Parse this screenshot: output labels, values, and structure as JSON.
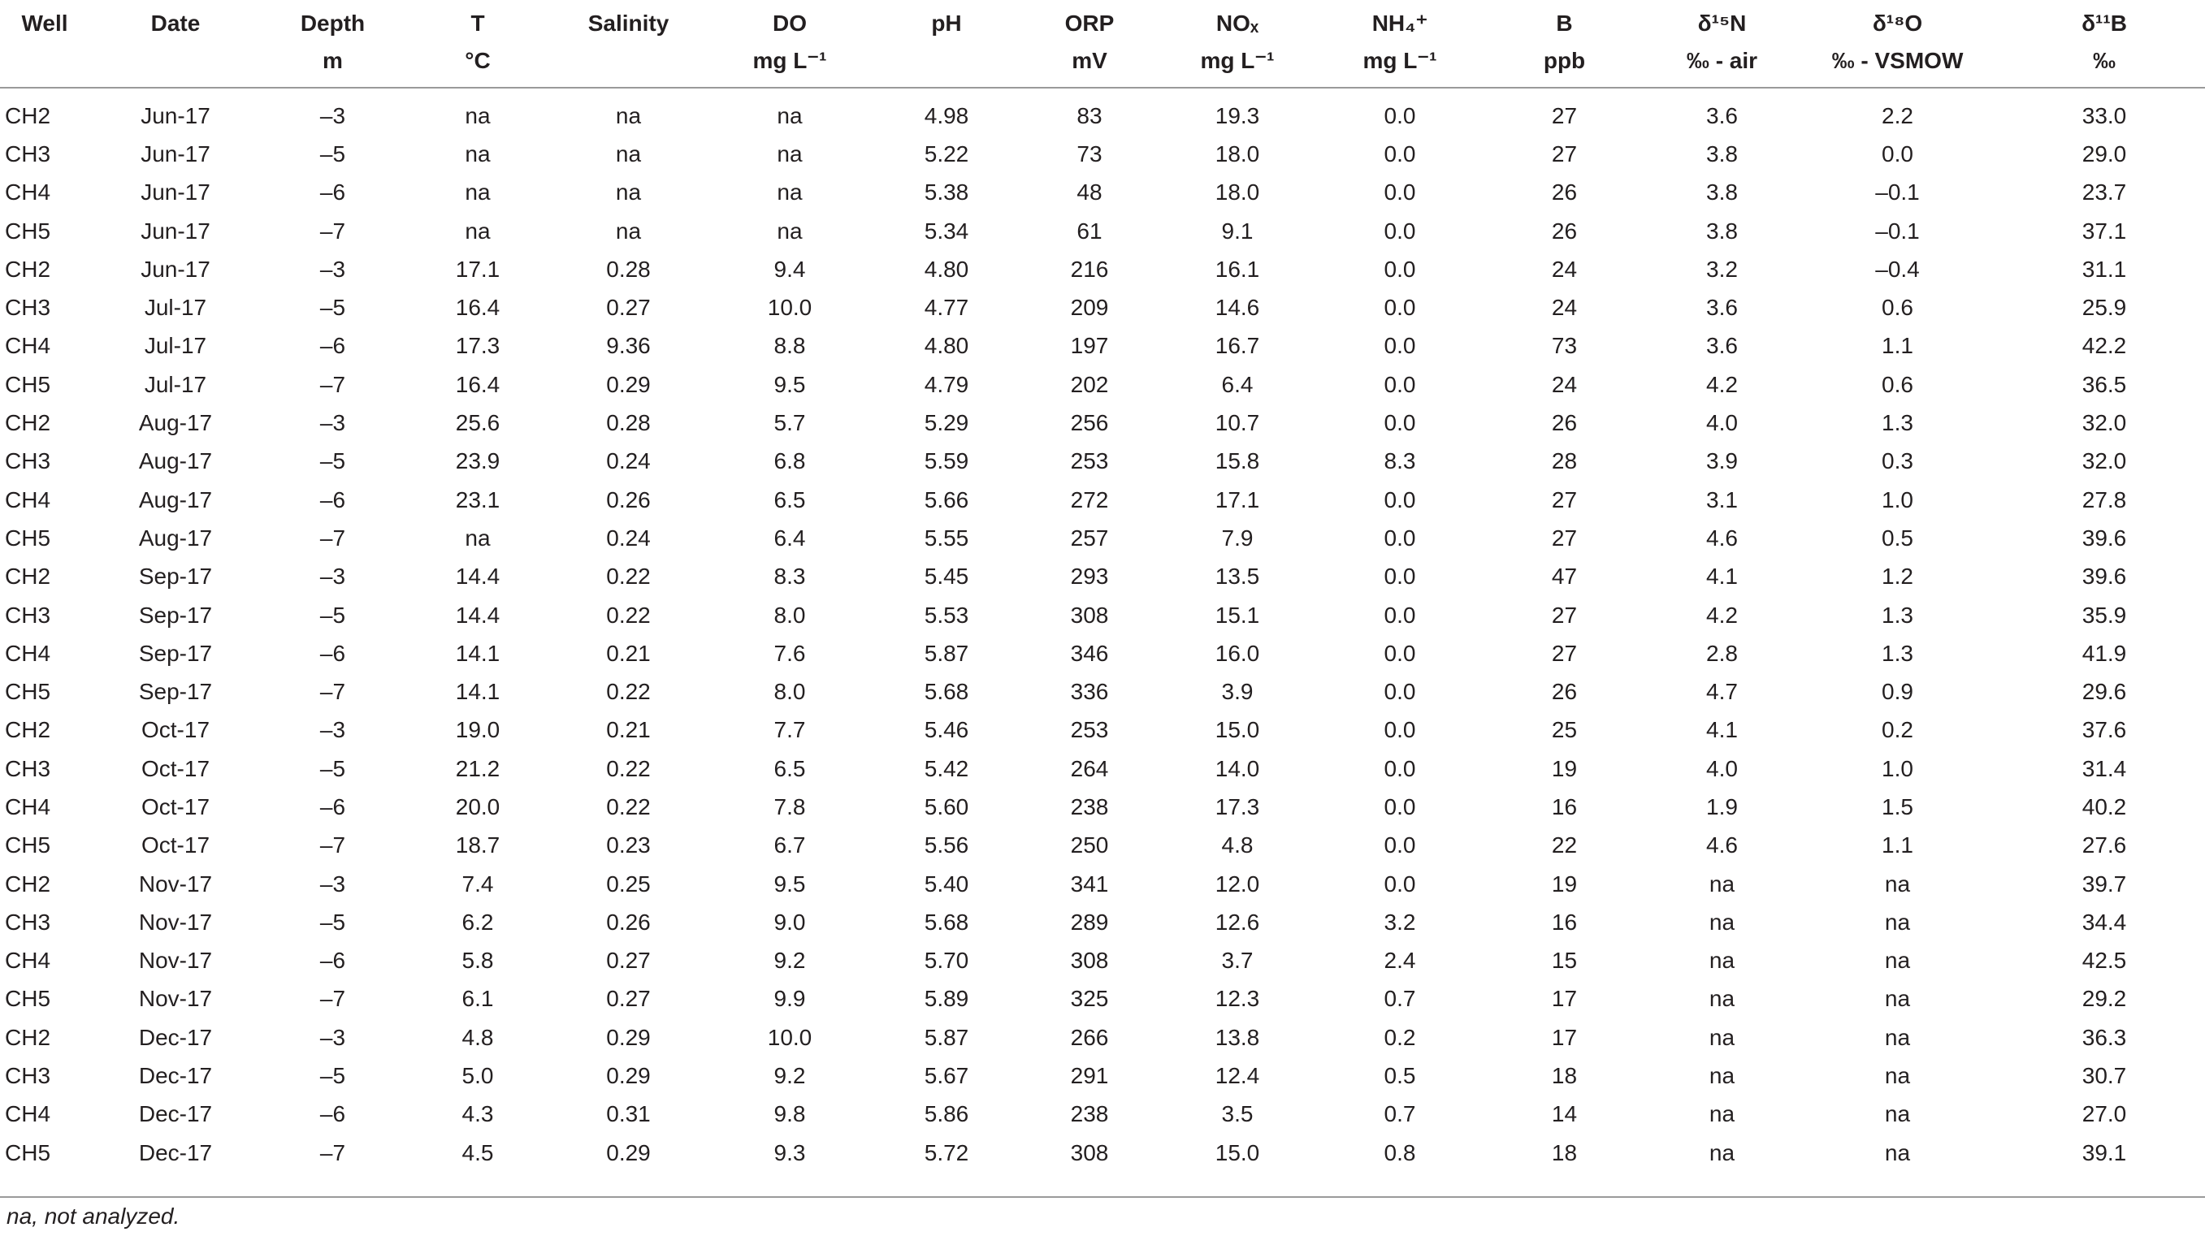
{
  "table": {
    "columns": [
      {
        "line1": "Well",
        "line2": ""
      },
      {
        "line1": "Date",
        "line2": ""
      },
      {
        "line1": "Depth",
        "line2": "m"
      },
      {
        "line1": "T",
        "line2": "°C"
      },
      {
        "line1": "Salinity",
        "line2": ""
      },
      {
        "line1": "DO",
        "line2": "mg L⁻¹"
      },
      {
        "line1": "pH",
        "line2": ""
      },
      {
        "line1": "ORP",
        "line2": "mV"
      },
      {
        "line1": "NOₓ",
        "line2": "mg L⁻¹"
      },
      {
        "line1": "NH₄⁺",
        "line2": "mg L⁻¹"
      },
      {
        "line1": "B",
        "line2": "ppb"
      },
      {
        "line1": "δ¹⁵N",
        "line2": "‰ - air"
      },
      {
        "line1": "δ¹⁸O",
        "line2": "‰ - VSMOW"
      },
      {
        "line1": "δ¹¹B",
        "line2": "‰"
      }
    ],
    "rows": [
      [
        "CH2",
        "Jun-17",
        "–3",
        "na",
        "na",
        "na",
        "4.98",
        "83",
        "19.3",
        "0.0",
        "27",
        "3.6",
        "2.2",
        "33.0"
      ],
      [
        "CH3",
        "Jun-17",
        "–5",
        "na",
        "na",
        "na",
        "5.22",
        "73",
        "18.0",
        "0.0",
        "27",
        "3.8",
        "0.0",
        "29.0"
      ],
      [
        "CH4",
        "Jun-17",
        "–6",
        "na",
        "na",
        "na",
        "5.38",
        "48",
        "18.0",
        "0.0",
        "26",
        "3.8",
        "–0.1",
        "23.7"
      ],
      [
        "CH5",
        "Jun-17",
        "–7",
        "na",
        "na",
        "na",
        "5.34",
        "61",
        "9.1",
        "0.0",
        "26",
        "3.8",
        "–0.1",
        "37.1"
      ],
      [
        "CH2",
        "Jun-17",
        "–3",
        "17.1",
        "0.28",
        "9.4",
        "4.80",
        "216",
        "16.1",
        "0.0",
        "24",
        "3.2",
        "–0.4",
        "31.1"
      ],
      [
        "CH3",
        "Jul-17",
        "–5",
        "16.4",
        "0.27",
        "10.0",
        "4.77",
        "209",
        "14.6",
        "0.0",
        "24",
        "3.6",
        "0.6",
        "25.9"
      ],
      [
        "CH4",
        "Jul-17",
        "–6",
        "17.3",
        "9.36",
        "8.8",
        "4.80",
        "197",
        "16.7",
        "0.0",
        "73",
        "3.6",
        "1.1",
        "42.2"
      ],
      [
        "CH5",
        "Jul-17",
        "–7",
        "16.4",
        "0.29",
        "9.5",
        "4.79",
        "202",
        "6.4",
        "0.0",
        "24",
        "4.2",
        "0.6",
        "36.5"
      ],
      [
        "CH2",
        "Aug-17",
        "–3",
        "25.6",
        "0.28",
        "5.7",
        "5.29",
        "256",
        "10.7",
        "0.0",
        "26",
        "4.0",
        "1.3",
        "32.0"
      ],
      [
        "CH3",
        "Aug-17",
        "–5",
        "23.9",
        "0.24",
        "6.8",
        "5.59",
        "253",
        "15.8",
        "8.3",
        "28",
        "3.9",
        "0.3",
        "32.0"
      ],
      [
        "CH4",
        "Aug-17",
        "–6",
        "23.1",
        "0.26",
        "6.5",
        "5.66",
        "272",
        "17.1",
        "0.0",
        "27",
        "3.1",
        "1.0",
        "27.8"
      ],
      [
        "CH5",
        "Aug-17",
        "–7",
        "na",
        "0.24",
        "6.4",
        "5.55",
        "257",
        "7.9",
        "0.0",
        "27",
        "4.6",
        "0.5",
        "39.6"
      ],
      [
        "CH2",
        "Sep-17",
        "–3",
        "14.4",
        "0.22",
        "8.3",
        "5.45",
        "293",
        "13.5",
        "0.0",
        "47",
        "4.1",
        "1.2",
        "39.6"
      ],
      [
        "CH3",
        "Sep-17",
        "–5",
        "14.4",
        "0.22",
        "8.0",
        "5.53",
        "308",
        "15.1",
        "0.0",
        "27",
        "4.2",
        "1.3",
        "35.9"
      ],
      [
        "CH4",
        "Sep-17",
        "–6",
        "14.1",
        "0.21",
        "7.6",
        "5.87",
        "346",
        "16.0",
        "0.0",
        "27",
        "2.8",
        "1.3",
        "41.9"
      ],
      [
        "CH5",
        "Sep-17",
        "–7",
        "14.1",
        "0.22",
        "8.0",
        "5.68",
        "336",
        "3.9",
        "0.0",
        "26",
        "4.7",
        "0.9",
        "29.6"
      ],
      [
        "CH2",
        "Oct-17",
        "–3",
        "19.0",
        "0.21",
        "7.7",
        "5.46",
        "253",
        "15.0",
        "0.0",
        "25",
        "4.1",
        "0.2",
        "37.6"
      ],
      [
        "CH3",
        "Oct-17",
        "–5",
        "21.2",
        "0.22",
        "6.5",
        "5.42",
        "264",
        "14.0",
        "0.0",
        "19",
        "4.0",
        "1.0",
        "31.4"
      ],
      [
        "CH4",
        "Oct-17",
        "–6",
        "20.0",
        "0.22",
        "7.8",
        "5.60",
        "238",
        "17.3",
        "0.0",
        "16",
        "1.9",
        "1.5",
        "40.2"
      ],
      [
        "CH5",
        "Oct-17",
        "–7",
        "18.7",
        "0.23",
        "6.7",
        "5.56",
        "250",
        "4.8",
        "0.0",
        "22",
        "4.6",
        "1.1",
        "27.6"
      ],
      [
        "CH2",
        "Nov-17",
        "–3",
        "7.4",
        "0.25",
        "9.5",
        "5.40",
        "341",
        "12.0",
        "0.0",
        "19",
        "na",
        "na",
        "39.7"
      ],
      [
        "CH3",
        "Nov-17",
        "–5",
        "6.2",
        "0.26",
        "9.0",
        "5.68",
        "289",
        "12.6",
        "3.2",
        "16",
        "na",
        "na",
        "34.4"
      ],
      [
        "CH4",
        "Nov-17",
        "–6",
        "5.8",
        "0.27",
        "9.2",
        "5.70",
        "308",
        "3.7",
        "2.4",
        "15",
        "na",
        "na",
        "42.5"
      ],
      [
        "CH5",
        "Nov-17",
        "–7",
        "6.1",
        "0.27",
        "9.9",
        "5.89",
        "325",
        "12.3",
        "0.7",
        "17",
        "na",
        "na",
        "29.2"
      ],
      [
        "CH2",
        "Dec-17",
        "–3",
        "4.8",
        "0.29",
        "10.0",
        "5.87",
        "266",
        "13.8",
        "0.2",
        "17",
        "na",
        "na",
        "36.3"
      ],
      [
        "CH3",
        "Dec-17",
        "–5",
        "5.0",
        "0.29",
        "9.2",
        "5.67",
        "291",
        "12.4",
        "0.5",
        "18",
        "na",
        "na",
        "30.7"
      ],
      [
        "CH4",
        "Dec-17",
        "–6",
        "4.3",
        "0.31",
        "9.8",
        "5.86",
        "238",
        "3.5",
        "0.7",
        "14",
        "na",
        "na",
        "27.0"
      ],
      [
        "CH5",
        "Dec-17",
        "–7",
        "4.5",
        "0.29",
        "9.3",
        "5.72",
        "308",
        "15.0",
        "0.8",
        "18",
        "na",
        "na",
        "39.1"
      ]
    ]
  },
  "footnote": "na, not analyzed."
}
